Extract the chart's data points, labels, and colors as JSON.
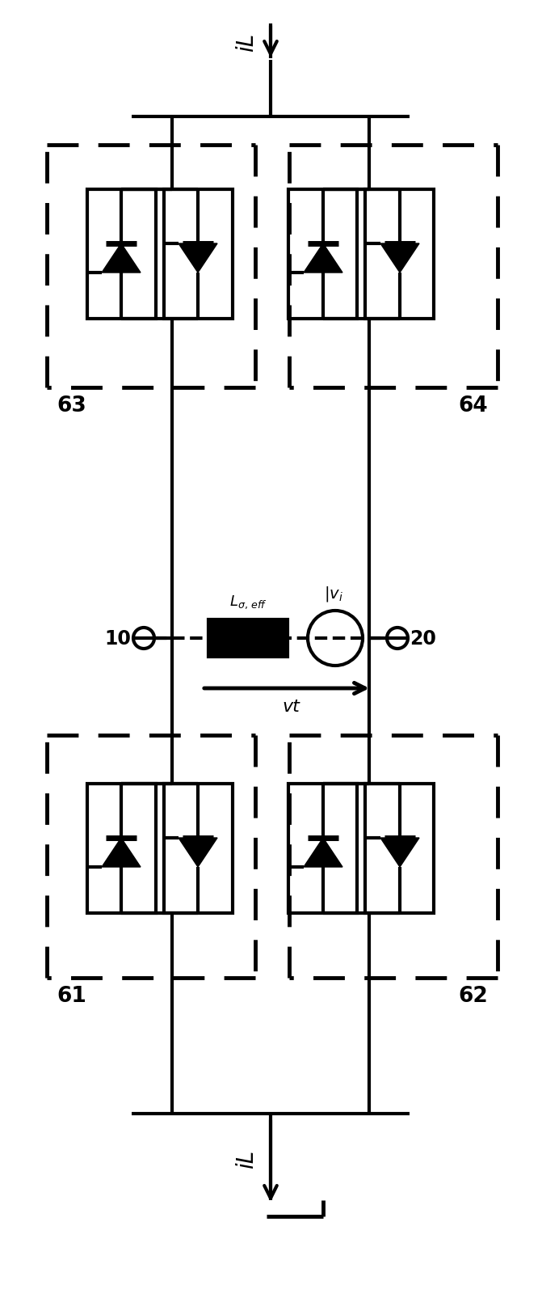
{
  "bg_color": "#ffffff",
  "line_color": "#000000",
  "fig_width": 6.71,
  "fig_height": 16.06,
  "dpi": 100,
  "labels": {
    "iL_top": "iL",
    "iL_bot": "iL",
    "node10": "10",
    "node20": "20",
    "vt_label": "vt",
    "box63": "63",
    "box64": "64",
    "box61": "61",
    "box62": "62"
  }
}
